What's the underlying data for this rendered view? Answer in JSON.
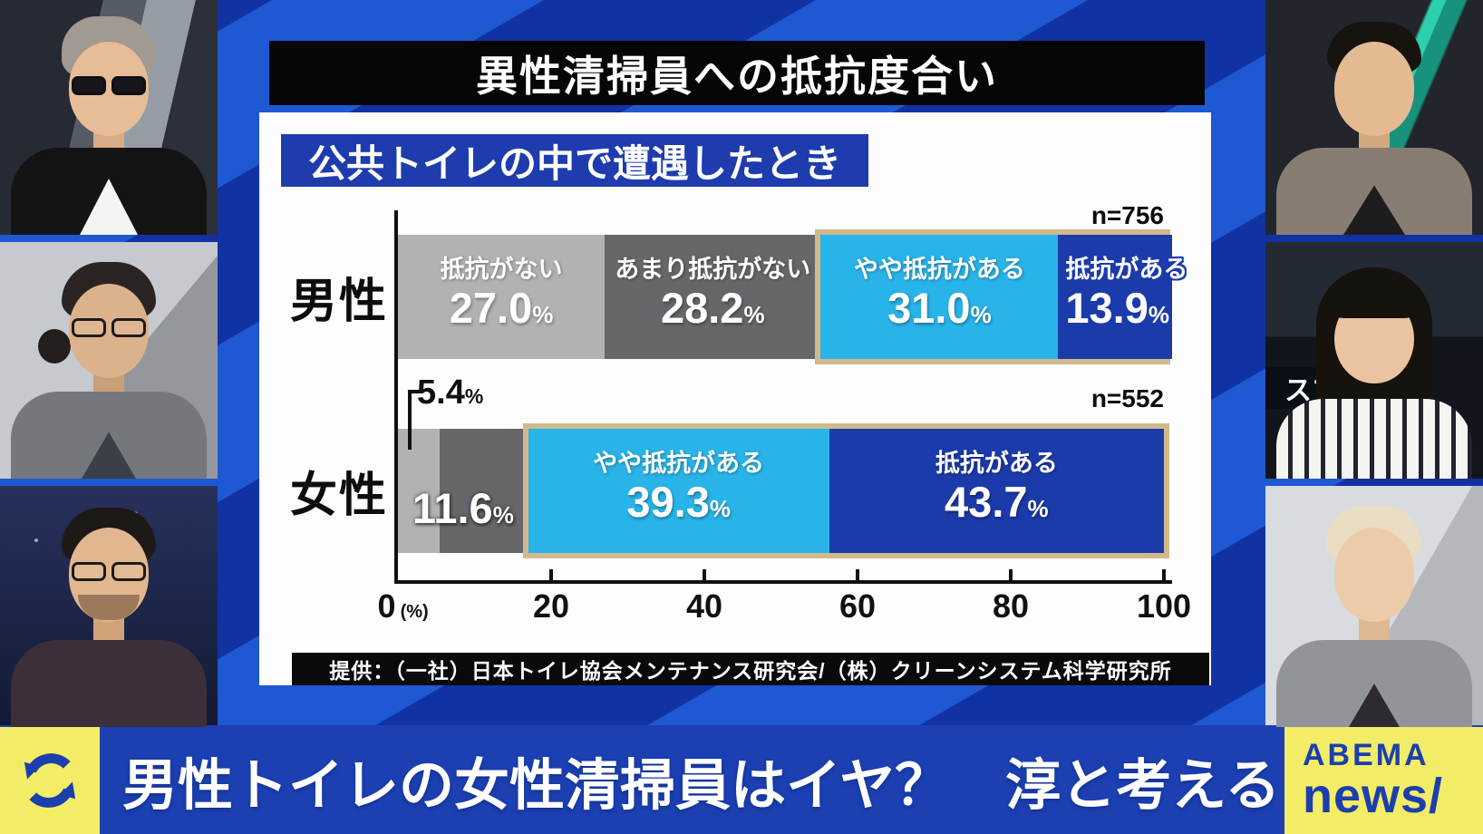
{
  "broadcast": {
    "headline": "男性トイレの女性清掃員はイヤ？　淳と考える",
    "channel": {
      "line1": "ABEMA",
      "line2": "news/"
    },
    "screen_text": "スプラ",
    "thumbnails": {
      "left_top": "man with gray hair and dark sunglasses, black jacket over white shirt",
      "left_middle": "person with long dark hair tied back, glasses, gray jacket",
      "left_bottom": "man with dark hair, glasses and beard, dark jacket",
      "right_top": "man with short dark hair, gray-brown jacket, dark shirt",
      "right_middle": "woman with long dark hair, black and white striped top",
      "right_bottom": "person with platinum blonde hair, gray jacket"
    }
  },
  "chart_data": {
    "type": "bar",
    "orientation": "horizontal-stacked",
    "title": "異性清掃員への抵抗度合い",
    "subtitle": "公共トイレの中で遭遇したとき",
    "xlim": [
      0,
      100
    ],
    "x_ticks": [
      "0",
      "20",
      "40",
      "60",
      "80",
      "100"
    ],
    "unit": "(%)",
    "source": "提供：（一社）日本トイレ協会メンテナンス研究会/（株）クリーンシステム科学研究所",
    "legend_categories": [
      "抵抗がない",
      "あまり抵抗がない",
      "やや抵抗がある",
      "抵抗がある"
    ],
    "colors": {
      "抵抗がない": "#b2b2b4",
      "あまり抵抗がない": "#67676b",
      "やや抵抗がある": "#29b4e9",
      "抵抗がある": "#1c3bab",
      "highlight_border": "#d2b98c"
    },
    "rows": [
      {
        "category": "男性",
        "n_label": "n=756",
        "segments": [
          {
            "name": "抵抗がない",
            "value": 27.0,
            "display": "27.0",
            "color": "#b2b2b4",
            "label": "inside",
            "highlight": false
          },
          {
            "name": "あまり抵抗がない",
            "value": 28.2,
            "display": "28.2",
            "color": "#67676b",
            "label": "inside",
            "highlight": false
          },
          {
            "name": "やや抵抗がある",
            "value": 31.0,
            "display": "31.0",
            "color": "#29b4e9",
            "label": "inside",
            "highlight": true
          },
          {
            "name": "抵抗がある",
            "value": 13.9,
            "display": "13.9",
            "color": "#1c3bab",
            "label": "inside-overflow",
            "highlight": true
          }
        ]
      },
      {
        "category": "女性",
        "n_label": "n=552",
        "segments": [
          {
            "name": "抵抗がない",
            "value": 5.4,
            "display": "5.4",
            "color": "#b2b2b4",
            "label": "callout-above",
            "highlight": false
          },
          {
            "name": "あまり抵抗がない",
            "value": 11.6,
            "display": "11.6",
            "color": "#67676b",
            "label": "value-overlay",
            "highlight": false
          },
          {
            "name": "やや抵抗がある",
            "value": 39.3,
            "display": "39.3",
            "color": "#29b4e9",
            "label": "inside",
            "highlight": true
          },
          {
            "name": "抵抗がある",
            "value": 43.7,
            "display": "43.7",
            "color": "#1c3bab",
            "label": "inside",
            "highlight": true
          }
        ]
      }
    ]
  }
}
